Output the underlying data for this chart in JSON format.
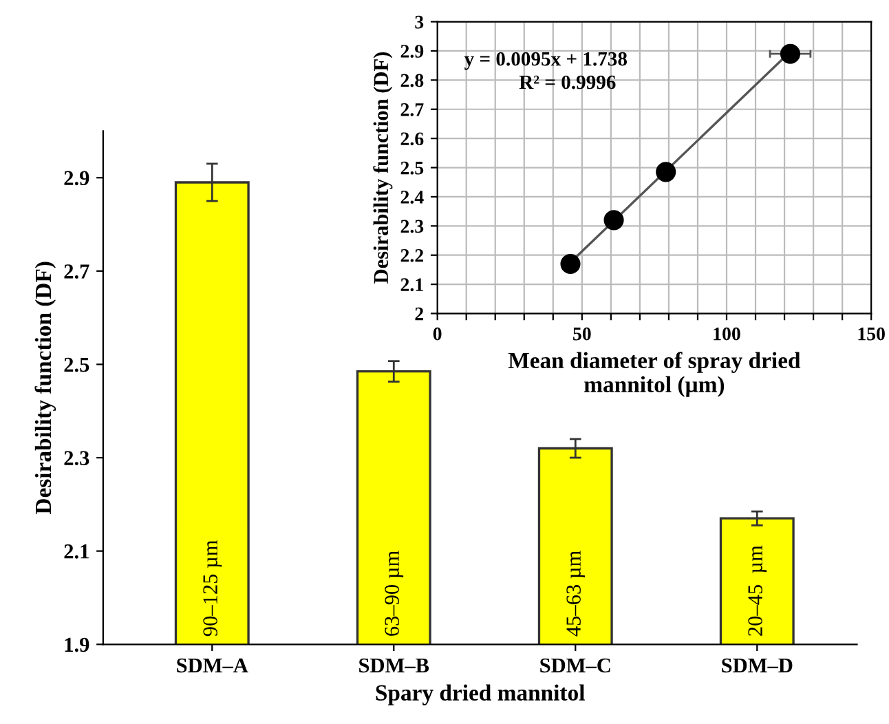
{
  "chart_data": [
    {
      "type": "bar",
      "xlabel": "Spary dried mannitol",
      "ylabel": "Desirability function (DF)",
      "categories": [
        "SDM–A",
        "SDM–B",
        "SDM–C",
        "SDM–D"
      ],
      "values": [
        2.89,
        2.485,
        2.32,
        2.17
      ],
      "errors": [
        0.04,
        0.022,
        0.02,
        0.015
      ],
      "color": "#ffff00",
      "ylim": [
        1.9,
        3.0
      ],
      "yticks": [
        1.9,
        2.1,
        2.3,
        2.5,
        2.7,
        2.9
      ],
      "grid": false,
      "annotations": [
        "90–125 µm",
        "63–90 µm",
        "45–63 µm",
        "20–45  µm"
      ]
    },
    {
      "type": "scatter",
      "xlabel": "Mean diameter of spray dried\nmannitol (µm)",
      "ylabel": "Desirability function (DF)",
      "series": [
        {
          "type": "scatter",
          "color": "#000000",
          "x": [
            46,
            61,
            79,
            122
          ],
          "values": [
            2.17,
            2.32,
            2.485,
            2.89
          ],
          "xerrors": [
            null,
            null,
            null,
            7
          ],
          "marker": "circle"
        },
        {
          "type": "line",
          "color": "#555555",
          "x": [
            46,
            122
          ],
          "values": [
            2.175,
            2.897
          ],
          "line_style": "solid"
        }
      ],
      "xlim": [
        0,
        150
      ],
      "xticks": [
        0,
        {
          "value": 10,
          "label": null
        },
        {
          "value": 20,
          "label": null
        },
        {
          "value": 30,
          "label": null
        },
        {
          "value": 40,
          "label": null
        },
        50,
        {
          "value": 60,
          "label": null
        },
        {
          "value": 70,
          "label": null
        },
        {
          "value": 80,
          "label": null
        },
        {
          "value": 90,
          "label": null
        },
        100,
        {
          "value": 110,
          "label": null
        },
        {
          "value": 120,
          "label": null
        },
        {
          "value": 130,
          "label": null
        },
        {
          "value": 140,
          "label": null
        },
        150
      ],
      "ylim": [
        2,
        3
      ],
      "yticks": [
        2,
        2.1,
        2.2,
        2.3,
        2.4,
        2.5,
        2.6,
        2.7,
        2.8,
        2.9,
        3
      ],
      "grid": true,
      "annotations": [
        "y = 0.0095x + 1.738",
        "R² = 0.9996"
      ]
    }
  ]
}
